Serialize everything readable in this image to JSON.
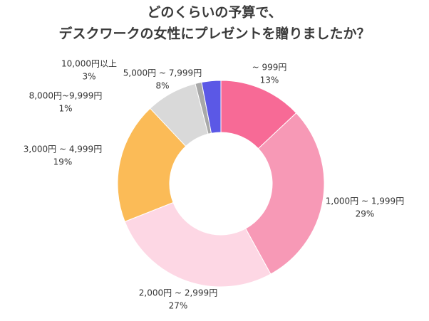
{
  "chart_data": {
    "type": "donut",
    "title": [
      "どのくらいの予算で、",
      "デスクワークの女性にプレゼントを贈りましたか？"
    ],
    "categories": [
      "~ 999円",
      "1,000円 ~ 1,999円",
      "2,000円 ~ 2,999円",
      "3,000円 ~ 4,999円",
      "5,000円 ~ 7,999円",
      "8,000円~9,999円",
      "10,000円以上"
    ],
    "values": [
      13,
      29,
      27,
      19,
      8,
      1,
      3
    ],
    "value_labels": [
      "13%",
      "29%",
      "27%",
      "19%",
      "8%",
      "1%",
      "3%"
    ],
    "colors": [
      "#f76a96",
      "#f799b6",
      "#fdd7e4",
      "#fbbb57",
      "#d9d9d9",
      "#a8a8a8",
      "#5b58e6"
    ]
  }
}
